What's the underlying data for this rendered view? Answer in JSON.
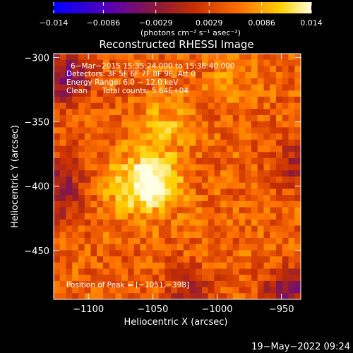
{
  "chart_data": {
    "type": "heatmap",
    "title": "Reconstructed RHESSI Image",
    "xlabel": "Heliocentric X (arcsec)",
    "ylabel": "Heliocentric Y (arcsec)",
    "xlim": [
      -1127,
      -935
    ],
    "ylim": [
      -488,
      -297
    ],
    "xticks": [
      -1100,
      -1050,
      -1000,
      -950
    ],
    "xtick_labels": [
      "−1100",
      "−1050",
      "−1000",
      "−950"
    ],
    "yticks": [
      -300,
      -350,
      -400,
      -450
    ],
    "ytick_labels": [
      "−300",
      "−350",
      "−400",
      "−450"
    ],
    "colorbar": {
      "min": -0.014,
      "max": 0.014,
      "ticks": [
        -0.014,
        -0.0086,
        -0.0029,
        0.0029,
        0.0086,
        0.014
      ],
      "tick_labels": [
        "−0.014",
        "−0.0086",
        "−0.0029",
        "0.0029",
        "0.0086",
        "0.014"
      ],
      "unit_label": "(photons cm⁻² s⁻¹ asec⁻²)"
    },
    "annotations": {
      "time": "6−Mar−2015 15:35:24.000 to 15:38:40.000",
      "detectors": "Detectors: 3F 5F 6F 7F 8F 9F, Att 0",
      "energy": "Energy Range: 6.0 − 12.0 keV",
      "clean": "Clean",
      "total_counts": "Total counts: 5.64E+04",
      "peak": "Position of Peak = [−1051,−398]"
    },
    "peak": {
      "x": -1051,
      "y": -398
    },
    "grid": false,
    "colormap": [
      "#0000ff",
      "#5a00b4",
      "#8a1a3a",
      "#c83000",
      "#ff7000",
      "#ffd000",
      "#ffffe0"
    ]
  },
  "footer": {
    "date": "19−May−2022 09:24"
  }
}
